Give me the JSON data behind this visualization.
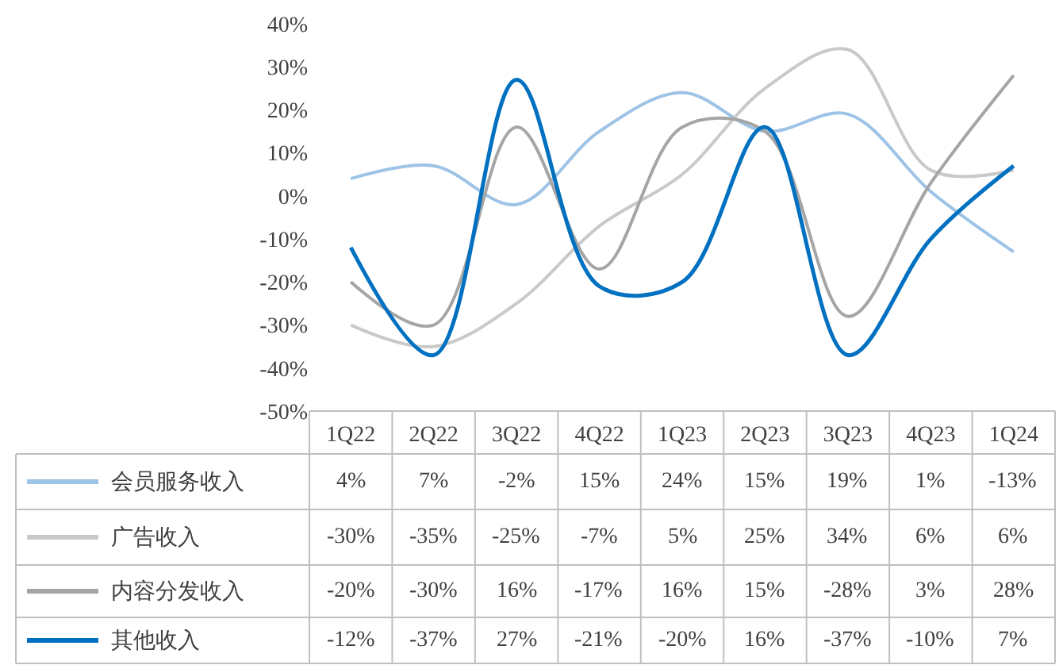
{
  "chart_data": {
    "type": "line",
    "categories": [
      "1Q22",
      "2Q22",
      "3Q22",
      "4Q22",
      "1Q23",
      "2Q23",
      "3Q23",
      "4Q23",
      "1Q24"
    ],
    "series": [
      {
        "name": "会员服务收入",
        "color": "#9dc3e6",
        "values": [
          4,
          7,
          -2,
          15,
          24,
          15,
          19,
          1,
          -13
        ],
        "value_labels": [
          "4%",
          "7%",
          "-2%",
          "15%",
          "24%",
          "15%",
          "19%",
          "1%",
          "-13%"
        ]
      },
      {
        "name": "广告收入",
        "color": "#c9c9c9",
        "values": [
          -30,
          -35,
          -25,
          -7,
          5,
          25,
          34,
          6,
          6
        ],
        "value_labels": [
          "-30%",
          "-35%",
          "-25%",
          "-7%",
          "5%",
          "25%",
          "34%",
          "6%",
          "6%"
        ]
      },
      {
        "name": "内容分发收入",
        "color": "#a5a5a5",
        "values": [
          -20,
          -30,
          16,
          -17,
          16,
          15,
          -28,
          3,
          28
        ],
        "value_labels": [
          "-20%",
          "-30%",
          "16%",
          "-17%",
          "16%",
          "15%",
          "-28%",
          "3%",
          "28%"
        ]
      },
      {
        "name": "其他收入",
        "color": "#0070c0",
        "values": [
          -12,
          -37,
          27,
          -21,
          -20,
          16,
          -37,
          -10,
          7
        ],
        "value_labels": [
          "-12%",
          "-37%",
          "27%",
          "-21%",
          "-20%",
          "16%",
          "-37%",
          "-10%",
          "7%"
        ]
      }
    ],
    "ylim": [
      -50,
      40
    ],
    "yticks": [
      {
        "value": -50,
        "label": "-50%"
      },
      {
        "value": -40,
        "label": "-40%"
      },
      {
        "value": -30,
        "label": "-30%"
      },
      {
        "value": -20,
        "label": "-20%"
      },
      {
        "value": -10,
        "label": "-10%"
      },
      {
        "value": 0,
        "label": "0%"
      },
      {
        "value": 10,
        "label": "10%"
      },
      {
        "value": 20,
        "label": "20%"
      },
      {
        "value": 30,
        "label": "30%"
      },
      {
        "value": 40,
        "label": "40%"
      }
    ],
    "grid": false,
    "legend": "bottom left",
    "line_style": "solid",
    "marker": "none"
  }
}
